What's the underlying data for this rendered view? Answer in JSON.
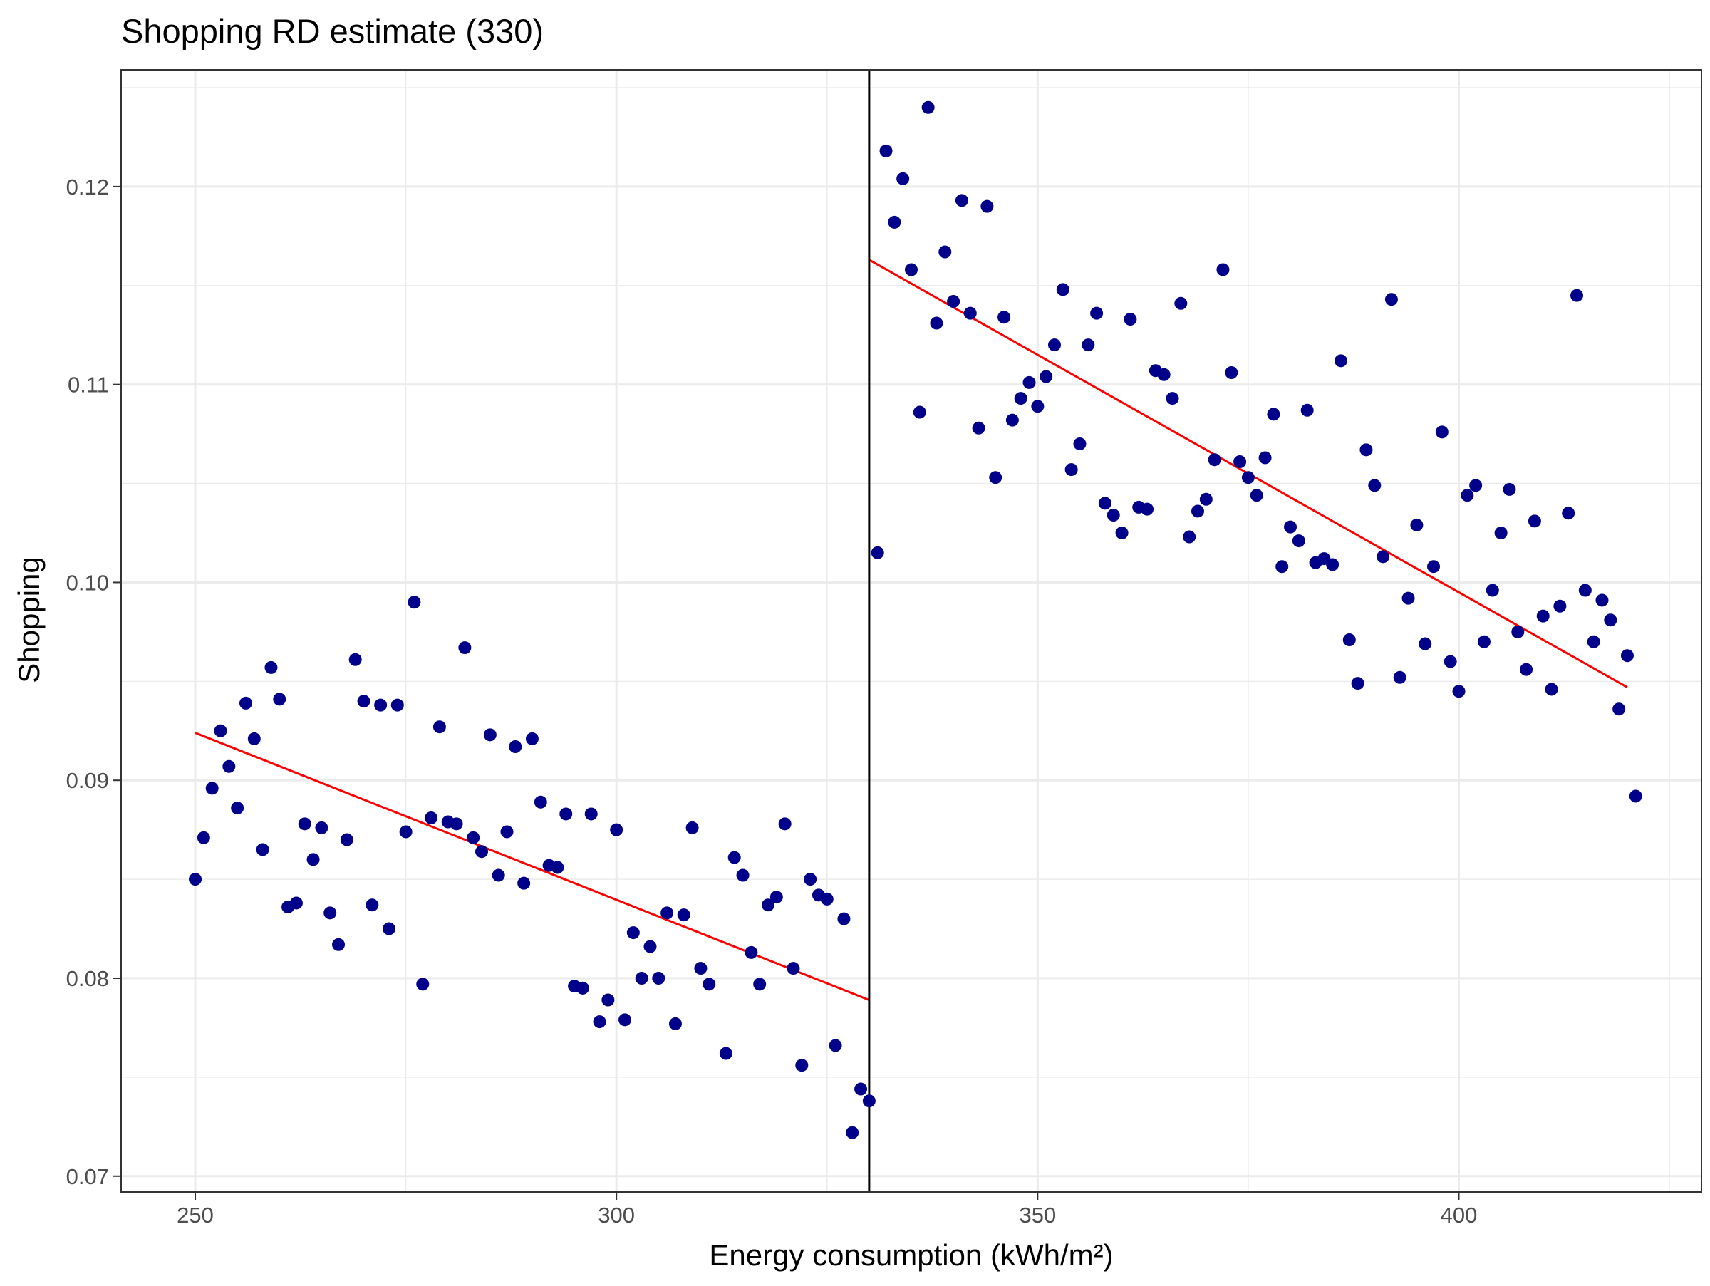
{
  "chart_data": {
    "type": "scatter",
    "title": "Shopping RD estimate (330)",
    "xlabel": "Energy consumption (kWh/m²)",
    "ylabel": "Shopping",
    "xlim": [
      241.2,
      428.8
    ],
    "ylim": [
      0.0692,
      0.1259
    ],
    "x_ticks": [
      250,
      300,
      350,
      400
    ],
    "x_tick_labels": [
      "250",
      "300",
      "350",
      "400"
    ],
    "x_minor_ticks": [
      275,
      325,
      375,
      425
    ],
    "y_ticks": [
      0.07,
      0.08,
      0.09,
      0.1,
      0.11,
      0.12
    ],
    "y_tick_labels": [
      "0.07",
      "0.08",
      "0.09",
      "0.10",
      "0.11",
      "0.12"
    ],
    "y_minor_ticks": [
      0.075,
      0.085,
      0.095,
      0.105,
      0.115,
      0.125
    ],
    "grid": true,
    "legend": "none",
    "cutoff": 330,
    "colors": {
      "points": "#00008B",
      "fit_lines": "#FF0000",
      "cutoff_line": "#000000",
      "grid": "#EBEBEB",
      "panel_border": "#333333"
    },
    "points": [
      [
        250,
        0.085
      ],
      [
        251,
        0.0871
      ],
      [
        252,
        0.0896
      ],
      [
        253,
        0.0925
      ],
      [
        254,
        0.0907
      ],
      [
        255,
        0.0886
      ],
      [
        256,
        0.0939
      ],
      [
        257,
        0.0921
      ],
      [
        258,
        0.0865
      ],
      [
        259,
        0.0957
      ],
      [
        260,
        0.0941
      ],
      [
        261,
        0.0836
      ],
      [
        262,
        0.0838
      ],
      [
        263,
        0.0878
      ],
      [
        264,
        0.086
      ],
      [
        265,
        0.0876
      ],
      [
        266,
        0.0833
      ],
      [
        267,
        0.0817
      ],
      [
        268,
        0.087
      ],
      [
        269,
        0.0961
      ],
      [
        270,
        0.094
      ],
      [
        271,
        0.0837
      ],
      [
        272,
        0.0938
      ],
      [
        273,
        0.0825
      ],
      [
        274,
        0.0938
      ],
      [
        275,
        0.0874
      ],
      [
        276,
        0.099
      ],
      [
        277,
        0.0797
      ],
      [
        278,
        0.0881
      ],
      [
        279,
        0.0927
      ],
      [
        280,
        0.0879
      ],
      [
        281,
        0.0878
      ],
      [
        282,
        0.0967
      ],
      [
        283,
        0.0871
      ],
      [
        284,
        0.0864
      ],
      [
        285,
        0.0923
      ],
      [
        286,
        0.0852
      ],
      [
        287,
        0.0874
      ],
      [
        288,
        0.0917
      ],
      [
        289,
        0.0848
      ],
      [
        290,
        0.0921
      ],
      [
        291,
        0.0889
      ],
      [
        292,
        0.0857
      ],
      [
        293,
        0.0856
      ],
      [
        294,
        0.0883
      ],
      [
        295,
        0.0796
      ],
      [
        296,
        0.0795
      ],
      [
        297,
        0.0883
      ],
      [
        298,
        0.0778
      ],
      [
        299,
        0.0789
      ],
      [
        300,
        0.0875
      ],
      [
        301,
        0.0779
      ],
      [
        302,
        0.0823
      ],
      [
        303,
        0.08
      ],
      [
        304,
        0.0816
      ],
      [
        305,
        0.08
      ],
      [
        306,
        0.0833
      ],
      [
        307,
        0.0777
      ],
      [
        308,
        0.0832
      ],
      [
        309,
        0.0876
      ],
      [
        310,
        0.0805
      ],
      [
        311,
        0.0797
      ],
      [
        313,
        0.0762
      ],
      [
        314,
        0.0861
      ],
      [
        315,
        0.0852
      ],
      [
        316,
        0.0813
      ],
      [
        317,
        0.0797
      ],
      [
        318,
        0.0837
      ],
      [
        319,
        0.0841
      ],
      [
        320,
        0.0878
      ],
      [
        321,
        0.0805
      ],
      [
        322,
        0.0756
      ],
      [
        323,
        0.085
      ],
      [
        324,
        0.0842
      ],
      [
        325,
        0.084
      ],
      [
        326,
        0.0766
      ],
      [
        327,
        0.083
      ],
      [
        328,
        0.0722
      ],
      [
        329,
        0.0744
      ],
      [
        330,
        0.0738
      ],
      [
        331,
        0.1015
      ],
      [
        332,
        0.1218
      ],
      [
        333,
        0.1182
      ],
      [
        334,
        0.1204
      ],
      [
        335,
        0.1158
      ],
      [
        336,
        0.1086
      ],
      [
        337,
        0.124
      ],
      [
        338,
        0.1131
      ],
      [
        339,
        0.1167
      ],
      [
        340,
        0.1142
      ],
      [
        341,
        0.1193
      ],
      [
        342,
        0.1136
      ],
      [
        343,
        0.1078
      ],
      [
        344,
        0.119
      ],
      [
        345,
        0.1053
      ],
      [
        346,
        0.1134
      ],
      [
        347,
        0.1082
      ],
      [
        348,
        0.1093
      ],
      [
        349,
        0.1101
      ],
      [
        350,
        0.1089
      ],
      [
        351,
        0.1104
      ],
      [
        352,
        0.112
      ],
      [
        353,
        0.1148
      ],
      [
        354,
        0.1057
      ],
      [
        355,
        0.107
      ],
      [
        356,
        0.112
      ],
      [
        357,
        0.1136
      ],
      [
        358,
        0.104
      ],
      [
        359,
        0.1034
      ],
      [
        360,
        0.1025
      ],
      [
        361,
        0.1133
      ],
      [
        362,
        0.1038
      ],
      [
        363,
        0.1037
      ],
      [
        364,
        0.1107
      ],
      [
        365,
        0.1105
      ],
      [
        366,
        0.1093
      ],
      [
        367,
        0.1141
      ],
      [
        368,
        0.1023
      ],
      [
        369,
        0.1036
      ],
      [
        370,
        0.1042
      ],
      [
        371,
        0.1062
      ],
      [
        372,
        0.1158
      ],
      [
        373,
        0.1106
      ],
      [
        374,
        0.1061
      ],
      [
        375,
        0.1053
      ],
      [
        376,
        0.1044
      ],
      [
        377,
        0.1063
      ],
      [
        378,
        0.1085
      ],
      [
        379,
        0.1008
      ],
      [
        380,
        0.1028
      ],
      [
        381,
        0.1021
      ],
      [
        382,
        0.1087
      ],
      [
        383,
        0.101
      ],
      [
        384,
        0.1012
      ],
      [
        385,
        0.1009
      ],
      [
        386,
        0.1112
      ],
      [
        387,
        0.0971
      ],
      [
        388,
        0.0949
      ],
      [
        389,
        0.1067
      ],
      [
        390,
        0.1049
      ],
      [
        391,
        0.1013
      ],
      [
        392,
        0.1143
      ],
      [
        393,
        0.0952
      ],
      [
        394,
        0.0992
      ],
      [
        395,
        0.1029
      ],
      [
        396,
        0.0969
      ],
      [
        397,
        0.1008
      ],
      [
        398,
        0.1076
      ],
      [
        399,
        0.096
      ],
      [
        400,
        0.0945
      ],
      [
        401,
        0.1044
      ],
      [
        402,
        0.1049
      ],
      [
        403,
        0.097
      ],
      [
        404,
        0.0996
      ],
      [
        405,
        0.1025
      ],
      [
        406,
        0.1047
      ],
      [
        407,
        0.0975
      ],
      [
        408,
        0.0956
      ],
      [
        409,
        0.1031
      ],
      [
        410,
        0.0983
      ],
      [
        411,
        0.0946
      ],
      [
        412,
        0.0988
      ],
      [
        413,
        0.1035
      ],
      [
        414,
        0.1145
      ],
      [
        415,
        0.0996
      ],
      [
        416,
        0.097
      ],
      [
        417,
        0.0991
      ],
      [
        418,
        0.0981
      ],
      [
        419,
        0.0936
      ],
      [
        420,
        0.0963
      ],
      [
        421,
        0.0892
      ]
    ],
    "fit_lines": [
      {
        "x": [
          250,
          330
        ],
        "y": [
          0.0924,
          0.0789
        ]
      },
      {
        "x": [
          330,
          420
        ],
        "y": [
          0.1163,
          0.0947
        ]
      }
    ]
  }
}
